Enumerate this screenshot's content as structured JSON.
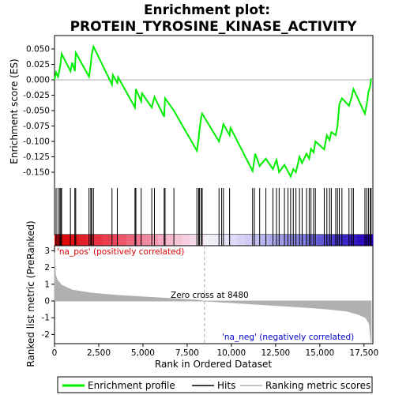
{
  "title_line1": "Enrichment plot:",
  "title_line2": "PROTEIN_TYROSINE_KINASE_ACTIVITY",
  "colors": {
    "es_line": "#00ee00",
    "hits": "#000000",
    "metric_fill": "#b0b0b0",
    "pos_label": "#dd0000",
    "neg_label": "#0000cc",
    "zero_line": "#aaaaaa"
  },
  "chart_data": [
    {
      "type": "line",
      "name": "enrichment-profile",
      "ylabel": "Enrichment score (ES)",
      "xlim": [
        0,
        18000
      ],
      "ylim": [
        -0.16,
        0.06
      ],
      "y_ticks": [
        0.05,
        0.025,
        0.0,
        -0.025,
        -0.05,
        -0.075,
        -0.1,
        -0.125,
        -0.15
      ],
      "y_tick_labels": [
        "0.050",
        "0.025",
        "0.000",
        "-0.025",
        "-0.050",
        "-0.075",
        "-0.100",
        "-0.125",
        "-0.150"
      ],
      "hit_positions": [
        90,
        200,
        300,
        350,
        400,
        900,
        1150,
        1200,
        1950,
        2050,
        2100,
        2200,
        3250,
        3550,
        4550,
        4600,
        4900,
        5500,
        5650,
        6200,
        6250,
        6750,
        8050,
        8150,
        8200,
        8300,
        8350,
        9300,
        9450,
        9550,
        9900,
        11200,
        11300,
        11600,
        11950,
        12350,
        12550,
        12700,
        13000,
        13200,
        13350,
        13500,
        13650,
        13850,
        14000,
        14250,
        14400,
        14500,
        14650,
        14750,
        15250,
        15400,
        15550,
        15650,
        15900,
        16000,
        16100,
        16250,
        16650,
        16800,
        16900,
        17550,
        17650,
        17750,
        17850,
        17900
      ],
      "es_points": [
        [
          0,
          0.0
        ],
        [
          90,
          0.012
        ],
        [
          200,
          0.005
        ],
        [
          300,
          0.018
        ],
        [
          350,
          0.028
        ],
        [
          400,
          0.042
        ],
        [
          900,
          0.014
        ],
        [
          1000,
          0.028
        ],
        [
          1150,
          0.014
        ],
        [
          1200,
          0.044
        ],
        [
          1950,
          0.005
        ],
        [
          2050,
          0.025
        ],
        [
          2100,
          0.04
        ],
        [
          2200,
          0.054
        ],
        [
          3250,
          -0.008
        ],
        [
          3300,
          0.008
        ],
        [
          3550,
          -0.005
        ],
        [
          3600,
          0.004
        ],
        [
          4550,
          -0.045
        ],
        [
          4600,
          -0.015
        ],
        [
          4900,
          -0.035
        ],
        [
          4950,
          -0.022
        ],
        [
          5500,
          -0.045
        ],
        [
          5650,
          -0.028
        ],
        [
          6200,
          -0.06
        ],
        [
          6250,
          -0.03
        ],
        [
          6750,
          -0.05
        ],
        [
          8050,
          -0.115
        ],
        [
          8150,
          -0.095
        ],
        [
          8200,
          -0.08
        ],
        [
          8300,
          -0.06
        ],
        [
          8350,
          -0.055
        ],
        [
          9300,
          -0.1
        ],
        [
          9450,
          -0.085
        ],
        [
          9550,
          -0.072
        ],
        [
          9900,
          -0.09
        ],
        [
          9950,
          -0.078
        ],
        [
          11200,
          -0.148
        ],
        [
          11300,
          -0.13
        ],
        [
          11350,
          -0.12
        ],
        [
          11600,
          -0.14
        ],
        [
          11950,
          -0.128
        ],
        [
          12350,
          -0.145
        ],
        [
          12550,
          -0.13
        ],
        [
          12700,
          -0.15
        ],
        [
          13000,
          -0.138
        ],
        [
          13350,
          -0.157
        ],
        [
          13500,
          -0.145
        ],
        [
          13650,
          -0.15
        ],
        [
          13850,
          -0.125
        ],
        [
          14000,
          -0.135
        ],
        [
          14250,
          -0.12
        ],
        [
          14400,
          -0.128
        ],
        [
          14500,
          -0.112
        ],
        [
          14650,
          -0.118
        ],
        [
          14750,
          -0.1
        ],
        [
          15250,
          -0.113
        ],
        [
          15400,
          -0.09
        ],
        [
          15550,
          -0.098
        ],
        [
          15650,
          -0.085
        ],
        [
          15900,
          -0.09
        ],
        [
          16000,
          -0.075
        ],
        [
          16100,
          -0.04
        ],
        [
          16250,
          -0.03
        ],
        [
          16650,
          -0.042
        ],
        [
          16800,
          -0.028
        ],
        [
          16900,
          -0.015
        ],
        [
          17550,
          -0.055
        ],
        [
          17650,
          -0.04
        ],
        [
          17750,
          -0.02
        ],
        [
          17850,
          -0.01
        ],
        [
          17900,
          0.002
        ]
      ]
    },
    {
      "type": "area",
      "name": "ranked-list-metric",
      "xlabel": "Rank in Ordered Dataset",
      "ylabel": "Ranked list metric (PreRanked)",
      "xlim": [
        0,
        18000
      ],
      "ylim": [
        -2.5,
        3.3
      ],
      "x_ticks": [
        0,
        2500,
        5000,
        7500,
        10000,
        12500,
        15000,
        17500
      ],
      "x_tick_labels": [
        "0",
        "2,500",
        "5,000",
        "7,500",
        "10,000",
        "12,500",
        "15,000",
        "17,500"
      ],
      "y_ticks": [
        3,
        2,
        1,
        0,
        -1,
        -2
      ],
      "y_tick_labels": [
        "3",
        "2",
        "1",
        "0",
        "-1",
        "-2"
      ],
      "metric_points": [
        [
          0,
          2.9
        ],
        [
          50,
          1.6
        ],
        [
          150,
          1.25
        ],
        [
          400,
          0.95
        ],
        [
          1000,
          0.65
        ],
        [
          2000,
          0.48
        ],
        [
          3500,
          0.34
        ],
        [
          5000,
          0.24
        ],
        [
          6500,
          0.15
        ],
        [
          8000,
          0.05
        ],
        [
          8480,
          0.0
        ],
        [
          10000,
          -0.1
        ],
        [
          11500,
          -0.2
        ],
        [
          13000,
          -0.3
        ],
        [
          14500,
          -0.4
        ],
        [
          15500,
          -0.48
        ],
        [
          16500,
          -0.6
        ],
        [
          17200,
          -0.8
        ],
        [
          17600,
          -1.0
        ],
        [
          17800,
          -1.35
        ],
        [
          17900,
          -2.5
        ]
      ],
      "zero_cross_x": 8480,
      "zero_cross_label": "Zero cross at 8480",
      "pos_label": "'na_pos' (positively correlated)",
      "neg_label": "'na_neg' (negatively correlated)"
    }
  ],
  "legend": {
    "items": [
      {
        "label": "Enrichment profile",
        "color": "#00ee00",
        "kind": "line"
      },
      {
        "label": "Hits",
        "color": "#000000",
        "kind": "line"
      },
      {
        "label": "Ranking metric scores",
        "color": "#b0b0b0",
        "kind": "line"
      }
    ]
  }
}
